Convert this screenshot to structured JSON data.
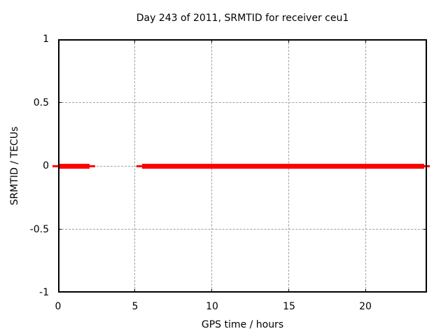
{
  "title": "Day 243 of 2011, SRMTID for receiver ceu1",
  "chart_data": {
    "type": "line",
    "title": "Day 243 of 2011, SRMTID for receiver ceu1",
    "xlabel": "GPS time / hours",
    "ylabel": "SRMTID / TECUs",
    "xlim": [
      0,
      24
    ],
    "ylim": [
      -1,
      1
    ],
    "xticks": {
      "values": [
        0,
        5,
        10,
        15,
        20
      ],
      "labels": [
        "0",
        "5",
        "10",
        "15",
        "20"
      ]
    },
    "yticks": {
      "values": [
        1,
        0.5,
        0,
        -0.5,
        -1
      ],
      "labels": [
        "1",
        "0.5",
        "0",
        "-0.5",
        "-1"
      ]
    },
    "grid": true,
    "legend": "none",
    "series": [
      {
        "name": "SRMTID",
        "color": "#ff0000",
        "style": "thick horizontal line at constant value 0 with a data gap",
        "segments": [
          {
            "x_start": 0.0,
            "x_end": 2.05,
            "y": 0
          },
          {
            "x_start": 5.45,
            "x_end": 23.8,
            "y": 0
          }
        ]
      }
    ],
    "colors": {
      "line": "#ff0000",
      "grid": "#a0a0a0",
      "border": "#000000",
      "background": "#ffffff",
      "text": "#000000"
    }
  }
}
